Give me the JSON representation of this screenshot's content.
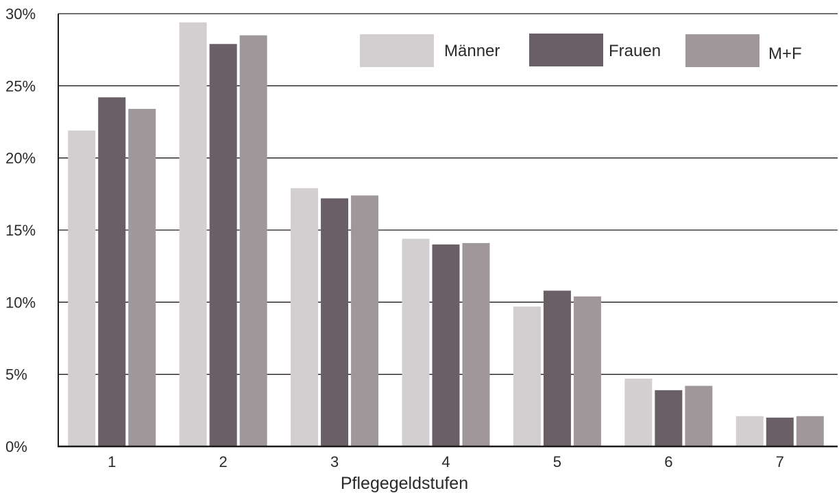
{
  "chart_data": {
    "type": "bar",
    "title": "",
    "xlabel": "Pflegegeldstufen",
    "ylabel": "",
    "categories": [
      "1",
      "2",
      "3",
      "4",
      "5",
      "6",
      "7"
    ],
    "series": [
      {
        "name": "Männer",
        "color": "#d3cfd0",
        "values": [
          21.9,
          29.4,
          17.9,
          14.4,
          9.7,
          4.7,
          2.1
        ]
      },
      {
        "name": "Frauen",
        "color": "#6b5f67",
        "values": [
          24.2,
          27.9,
          17.2,
          14.0,
          10.8,
          3.9,
          2.0
        ]
      },
      {
        "name": "M+F",
        "color": "#a0979b",
        "values": [
          23.4,
          28.5,
          17.4,
          14.1,
          10.4,
          4.2,
          2.1
        ]
      }
    ],
    "ylim": [
      0,
      30
    ],
    "yticks": [
      0,
      5,
      10,
      15,
      20,
      25,
      30
    ],
    "ytick_labels": [
      "0%",
      "5%",
      "10%",
      "15%",
      "20%",
      "25%",
      "30%"
    ],
    "grid": true,
    "legend_position": "top-right"
  }
}
